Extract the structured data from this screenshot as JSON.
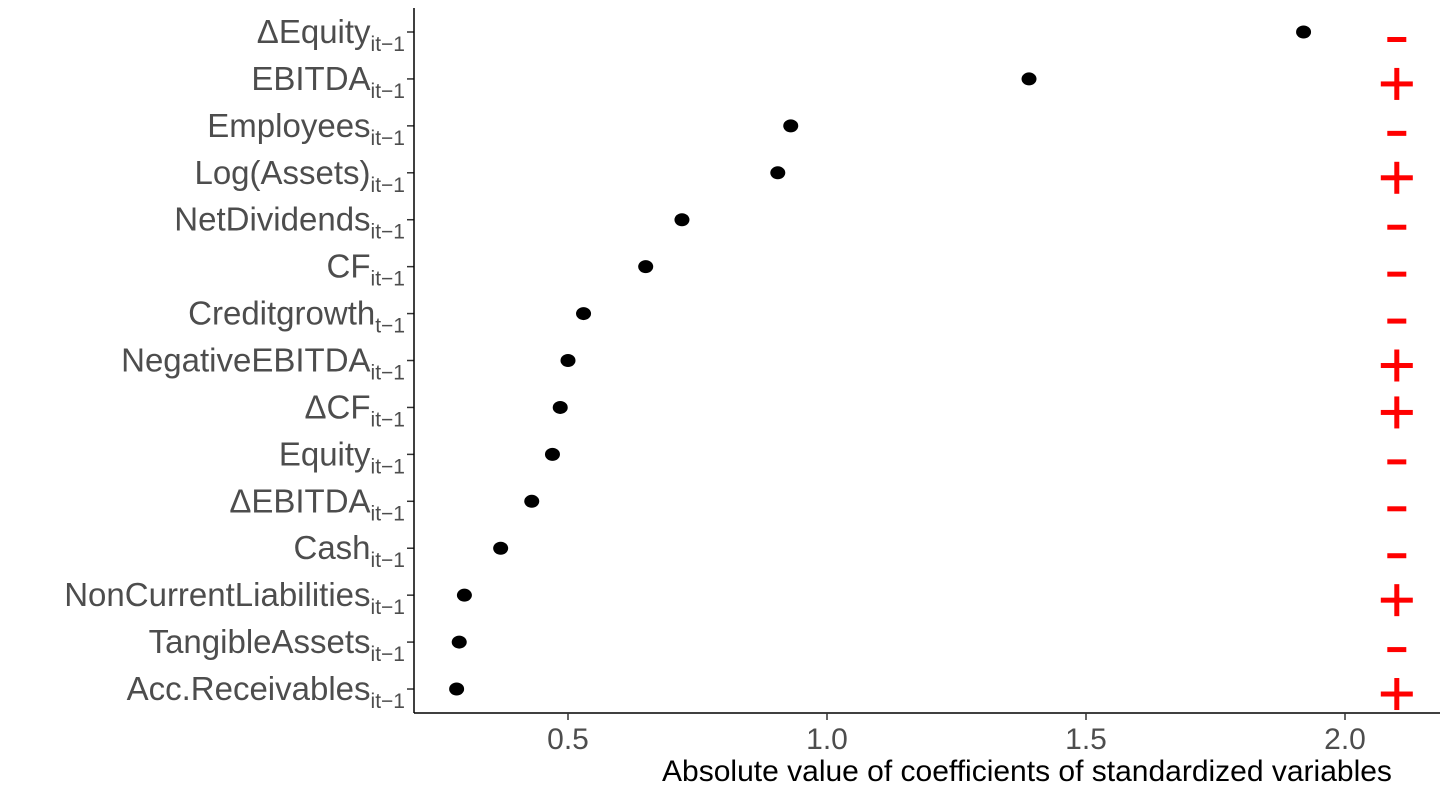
{
  "chart_data": {
    "type": "scatter",
    "xlabel": "Absolute value of coefficients of standardized variables",
    "ylabel": "",
    "xlim": [
      0.2,
      2.2
    ],
    "x_ticks": [
      "0.5",
      "1.0",
      "1.5",
      "2.0"
    ],
    "x_tick_values": [
      0.5,
      1.0,
      1.5,
      2.0
    ],
    "grid": false,
    "point_color": "#000000",
    "sign_color": "#ff0000",
    "sign_x": 2.1,
    "points": [
      {
        "label": "ΔEquity",
        "subscript": "it−1",
        "value": 1.92,
        "sign": "−"
      },
      {
        "label": "EBITDA",
        "subscript": "it−1",
        "value": 1.39,
        "sign": "+"
      },
      {
        "label": "Employees",
        "subscript": "it−1",
        "value": 0.93,
        "sign": "−"
      },
      {
        "label": "Log(Assets)",
        "subscript": "it−1",
        "value": 0.905,
        "sign": "+"
      },
      {
        "label": "NetDividends",
        "subscript": "it−1",
        "value": 0.72,
        "sign": "−"
      },
      {
        "label": "CF",
        "subscript": "it−1",
        "value": 0.65,
        "sign": "−"
      },
      {
        "label": "Creditgrowth",
        "subscript": "t−1",
        "value": 0.53,
        "sign": "−"
      },
      {
        "label": "NegativeEBITDA",
        "subscript": "it−1",
        "value": 0.5,
        "sign": "+"
      },
      {
        "label": "ΔCF",
        "subscript": "it−1",
        "value": 0.485,
        "sign": "+"
      },
      {
        "label": "Equity",
        "subscript": "it−1",
        "value": 0.47,
        "sign": "−"
      },
      {
        "label": "ΔEBITDA",
        "subscript": "it−1",
        "value": 0.43,
        "sign": "−"
      },
      {
        "label": "Cash",
        "subscript": "it−1",
        "value": 0.37,
        "sign": "−"
      },
      {
        "label": "NonCurrentLiabilities",
        "subscript": "it−1",
        "value": 0.3,
        "sign": "+"
      },
      {
        "label": "TangibleAssets",
        "subscript": "it−1",
        "value": 0.29,
        "sign": "−"
      },
      {
        "label": "Acc.Receivables",
        "subscript": "it−1",
        "value": 0.285,
        "sign": "+"
      }
    ]
  }
}
